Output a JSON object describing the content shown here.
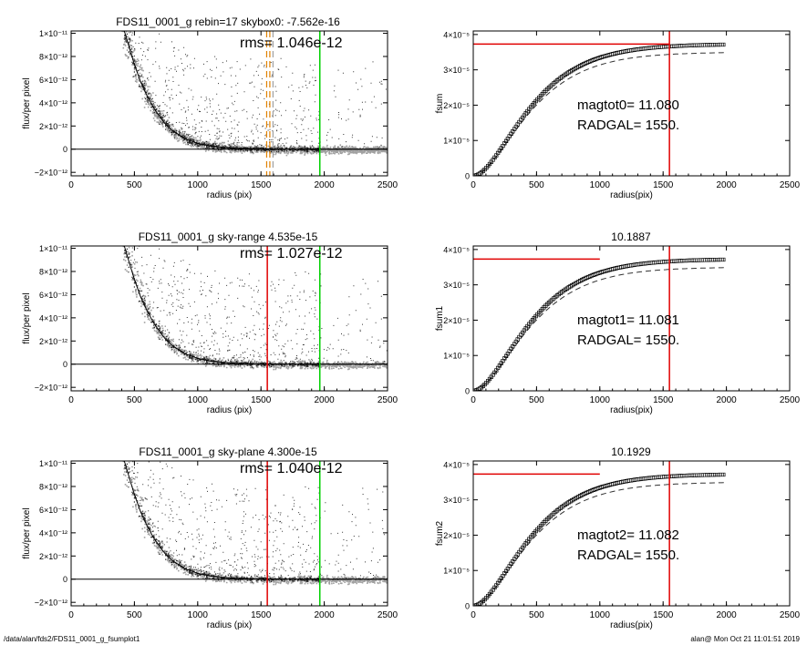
{
  "footer": {
    "left": "/data/alan/fds2/FDS11_0001_g_fsumplot1",
    "right": "alan@  Mon Oct 21 11:01:51 2019"
  },
  "colors": {
    "background": "#ffffff",
    "axes": "#000000",
    "sky_pixels": "#a0a0a0",
    "galaxy_pixels": "#202020",
    "profile_line": "#000000",
    "red_line": "#e00000",
    "green_line": "#00d000",
    "orange_dashed": "#e08000"
  },
  "chart_data": [
    {
      "id": "flux-1",
      "type": "scatter",
      "title": "FDS11_0001_g rebin=17    skybox0: -7.562e-16",
      "annotations": [
        "rms= 1.046e-12"
      ],
      "xlabel": "radius (pix)",
      "ylabel": "flux/per pixel",
      "xlim": [
        0,
        2500
      ],
      "ylim": [
        -2.3e-12,
        1.02e-11
      ],
      "xticks": [
        0,
        500,
        1000,
        1500,
        2000,
        2500
      ],
      "xtick_labels": [
        "0",
        "500",
        "1000",
        "1500",
        "2000",
        "2500"
      ],
      "yticks": [
        -2e-12,
        0,
        2e-12,
        4e-12,
        6e-12,
        8e-12,
        1e-11
      ],
      "ytick_labels": [
        "−2×10⁻¹²",
        "0",
        "2×10⁻¹²",
        "4×10⁻¹²",
        "6×10⁻¹²",
        "8×10⁻¹²",
        "1×10⁻¹¹"
      ],
      "profile": {
        "x": [
          420,
          450,
          500,
          550,
          600,
          650,
          700,
          750,
          800,
          900,
          1000,
          1100,
          1200,
          1300,
          1400,
          1550,
          1700,
          2000,
          2500
        ],
        "y": [
          1.02e-11,
          9.1e-12,
          7.3e-12,
          5.8e-12,
          4.6e-12,
          3.6e-12,
          2.8e-12,
          2.1e-12,
          1.6e-12,
          9e-13,
          5e-13,
          2.8e-13,
          1.6e-13,
          9e-14,
          5e-14,
          2e-14,
          1e-14,
          0,
          0
        ]
      },
      "sky_level": 0,
      "vlines": [
        {
          "x": 1545,
          "color": "#e08000",
          "style": "dashed"
        },
        {
          "x": 1570,
          "color": "#e08000",
          "style": "dashed"
        },
        {
          "x": 1595,
          "color": "#a0a0a0",
          "style": "dashed"
        },
        {
          "x": 1965,
          "color": "#00d000",
          "style": "solid"
        }
      ],
      "grey_noise_from": 1965
    },
    {
      "id": "fsum-0",
      "type": "line",
      "title": "",
      "annotations": [
        "magtot0=  11.080",
        "RADGAL=   1550."
      ],
      "xlabel": "radius(pix)",
      "ylabel": "fsum",
      "xlim": [
        0,
        2500
      ],
      "ylim": [
        0,
        4.1e-05
      ],
      "xticks": [
        0,
        500,
        1000,
        1500,
        2000,
        2500
      ],
      "xtick_labels": [
        "0",
        "500",
        "1000",
        "1500",
        "2000",
        "2500"
      ],
      "yticks": [
        0,
        1e-05,
        2e-05,
        3e-05,
        4e-05
      ],
      "ytick_labels": [
        "0",
        "1×10⁻⁵",
        "2×10⁻⁵",
        "3×10⁻⁵",
        "4×10⁻⁵"
      ],
      "asymptote": 3.73e-05,
      "dashed_asymptote": 3.5e-05,
      "scale_radius": 260,
      "points_to": 1980,
      "red_h_line": {
        "y": 3.73e-05,
        "x_end": 1550
      },
      "red_v_line": {
        "x": 1550
      }
    },
    {
      "id": "flux-2",
      "type": "scatter",
      "title": "FDS11_0001_g sky-range  4.535e-15",
      "annotations": [
        "rms= 1.027e-12"
      ],
      "xlabel": "radius (pix)",
      "ylabel": "flux/per pixel",
      "xlim": [
        0,
        2500
      ],
      "ylim": [
        -2.3e-12,
        1.02e-11
      ],
      "xticks": [
        0,
        500,
        1000,
        1500,
        2000,
        2500
      ],
      "xtick_labels": [
        "0",
        "500",
        "1000",
        "1500",
        "2000",
        "2500"
      ],
      "yticks": [
        -2e-12,
        0,
        2e-12,
        4e-12,
        6e-12,
        8e-12,
        1e-11
      ],
      "ytick_labels": [
        "−2×10⁻¹²",
        "0",
        "2×10⁻¹²",
        "4×10⁻¹²",
        "6×10⁻¹²",
        "8×10⁻¹²",
        "1×10⁻¹¹"
      ],
      "profile": {
        "x": [
          420,
          450,
          500,
          550,
          600,
          650,
          700,
          750,
          800,
          900,
          1000,
          1100,
          1200,
          1300,
          1400,
          1550,
          1700,
          2000,
          2500
        ],
        "y": [
          1.02e-11,
          9.1e-12,
          7.3e-12,
          5.8e-12,
          4.6e-12,
          3.6e-12,
          2.8e-12,
          2.1e-12,
          1.6e-12,
          9e-13,
          5e-13,
          2.8e-13,
          1.6e-13,
          9e-14,
          5e-14,
          2e-14,
          1e-14,
          0,
          0
        ]
      },
      "sky_level": 0,
      "vlines": [
        {
          "x": 1550,
          "color": "#e00000",
          "style": "solid"
        },
        {
          "x": 1965,
          "color": "#00d000",
          "style": "solid"
        }
      ],
      "grey_noise_from": 1965
    },
    {
      "id": "fsum-1",
      "type": "line",
      "title": "10.1887",
      "annotations": [
        "magtot1=  11.081",
        "RADGAL=   1550."
      ],
      "xlabel": "radius(pix)",
      "ylabel": "fsum1",
      "xlim": [
        0,
        2500
      ],
      "ylim": [
        0,
        4.1e-05
      ],
      "xticks": [
        0,
        500,
        1000,
        1500,
        2000,
        2500
      ],
      "xtick_labels": [
        "0",
        "500",
        "1000",
        "1500",
        "2000",
        "2500"
      ],
      "yticks": [
        0,
        1e-05,
        2e-05,
        3e-05,
        4e-05
      ],
      "ytick_labels": [
        "0",
        "1×10⁻⁵",
        "2×10⁻⁵",
        "3×10⁻⁵",
        "4×10⁻⁵"
      ],
      "asymptote": 3.73e-05,
      "dashed_asymptote": 3.5e-05,
      "scale_radius": 260,
      "points_to": 1980,
      "red_h_line": {
        "y": 3.73e-05,
        "x_end": 1000
      },
      "red_v_line": {
        "x": 1550
      }
    },
    {
      "id": "flux-3",
      "type": "scatter",
      "title": "FDS11_0001_g sky-plane  4.300e-15",
      "annotations": [
        "rms= 1.040e-12"
      ],
      "xlabel": "radius (pix)",
      "ylabel": "flux/per pixel",
      "xlim": [
        0,
        2500
      ],
      "ylim": [
        -2.3e-12,
        1.02e-11
      ],
      "xticks": [
        0,
        500,
        1000,
        1500,
        2000,
        2500
      ],
      "xtick_labels": [
        "0",
        "500",
        "1000",
        "1500",
        "2000",
        "2500"
      ],
      "yticks": [
        -2e-12,
        0,
        2e-12,
        4e-12,
        6e-12,
        8e-12,
        1e-11
      ],
      "ytick_labels": [
        "−2×10⁻¹²",
        "0",
        "2×10⁻¹²",
        "4×10⁻¹²",
        "6×10⁻¹²",
        "8×10⁻¹²",
        "1×10⁻¹¹"
      ],
      "profile": {
        "x": [
          420,
          450,
          500,
          550,
          600,
          650,
          700,
          750,
          800,
          900,
          1000,
          1100,
          1200,
          1300,
          1400,
          1550,
          1700,
          2000,
          2500
        ],
        "y": [
          1.02e-11,
          9.1e-12,
          7.3e-12,
          5.8e-12,
          4.6e-12,
          3.6e-12,
          2.8e-12,
          2.1e-12,
          1.6e-12,
          9e-13,
          5e-13,
          2.8e-13,
          1.6e-13,
          9e-14,
          5e-14,
          2e-14,
          1e-14,
          0,
          0
        ]
      },
      "sky_level": 0,
      "vlines": [
        {
          "x": 1550,
          "color": "#e00000",
          "style": "solid"
        },
        {
          "x": 1965,
          "color": "#00d000",
          "style": "solid"
        }
      ],
      "grey_noise_from": 1965
    },
    {
      "id": "fsum-2",
      "type": "line",
      "title": "10.1929",
      "annotations": [
        "magtot2=  11.082",
        "RADGAL=   1550."
      ],
      "xlabel": "radius(pix)",
      "ylabel": "fsum2",
      "xlim": [
        0,
        2500
      ],
      "ylim": [
        0,
        4.1e-05
      ],
      "xticks": [
        0,
        500,
        1000,
        1500,
        2000,
        2500
      ],
      "xtick_labels": [
        "0",
        "500",
        "1000",
        "1500",
        "2000",
        "2500"
      ],
      "yticks": [
        0,
        1e-05,
        2e-05,
        3e-05,
        4e-05
      ],
      "ytick_labels": [
        "0",
        "1×10⁻⁵",
        "2×10⁻⁵",
        "3×10⁻⁵",
        "4×10⁻⁵"
      ],
      "asymptote": 3.73e-05,
      "dashed_asymptote": 3.5e-05,
      "scale_radius": 260,
      "points_to": 1980,
      "red_h_line": {
        "y": 3.73e-05,
        "x_end": 1000
      },
      "red_v_line": {
        "x": 1550
      }
    }
  ]
}
